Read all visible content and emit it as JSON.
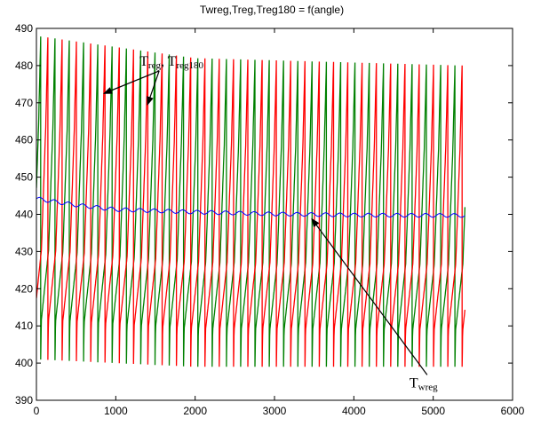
{
  "chart_data": {
    "type": "line",
    "title": "Twreg,Treg,Treg180 = f(angle)",
    "xlabel": "",
    "ylabel": "",
    "xlim": [
      0,
      6000
    ],
    "ylim": [
      390,
      490
    ],
    "xticks": [
      0,
      1000,
      2000,
      3000,
      4000,
      5000,
      6000
    ],
    "yticks": [
      390,
      400,
      410,
      420,
      430,
      440,
      450,
      460,
      470,
      480,
      490
    ],
    "xtick_labels": [
      "0",
      "1000",
      "2000",
      "3000",
      "4000",
      "5000",
      "6000"
    ],
    "ytick_labels": [
      "390",
      "400",
      "410",
      "420",
      "430",
      "440",
      "450",
      "460",
      "470",
      "480",
      "490"
    ],
    "grid": false,
    "series": [
      {
        "color": "#008000",
        "x_range": [
          0,
          5400
        ],
        "period": 180,
        "shape": "sawtooth",
        "start_phase": 0.7,
        "values_by_cycle_start": [
          {
            "x": 0,
            "min": 401,
            "max": 488
          },
          {
            "x": 2000,
            "min": 399,
            "max": 482
          },
          {
            "x": 5400,
            "min": 399,
            "max": 480
          }
        ]
      },
      {
        "color": "#ff0000",
        "x_range": [
          0,
          5400
        ],
        "period": 180,
        "shape": "sawtooth",
        "start_phase": 0.2,
        "values_by_cycle_start": [
          {
            "x": 0,
            "min": 401,
            "max": 488
          },
          {
            "x": 2000,
            "min": 399,
            "max": 482
          },
          {
            "x": 5400,
            "min": 399,
            "max": 480
          }
        ]
      },
      {
        "color": "#0000ff",
        "x_range": [
          0,
          5400
        ],
        "shape": "ripple",
        "period": 180,
        "amplitude": 0.5,
        "values": [
          [
            0,
            444.2
          ],
          [
            500,
            442.5
          ],
          [
            1000,
            441.3
          ],
          [
            2000,
            440.6
          ],
          [
            3000,
            440.1
          ],
          [
            4000,
            439.8
          ],
          [
            5400,
            439.7
          ]
        ]
      }
    ],
    "annotations": [
      {
        "text_main": "T",
        "text_sub": "reg",
        "text_sep": ", T",
        "text_sub2": "reg180",
        "x": 1300,
        "y": 480,
        "arrows_to": [
          [
            850,
            472.5
          ],
          [
            1400,
            469.5
          ]
        ]
      },
      {
        "text_main": "T",
        "text_sub": "wreg",
        "x": 4700,
        "y": 393.5,
        "arrows_to": [
          [
            3470,
            438.8
          ]
        ]
      }
    ]
  }
}
